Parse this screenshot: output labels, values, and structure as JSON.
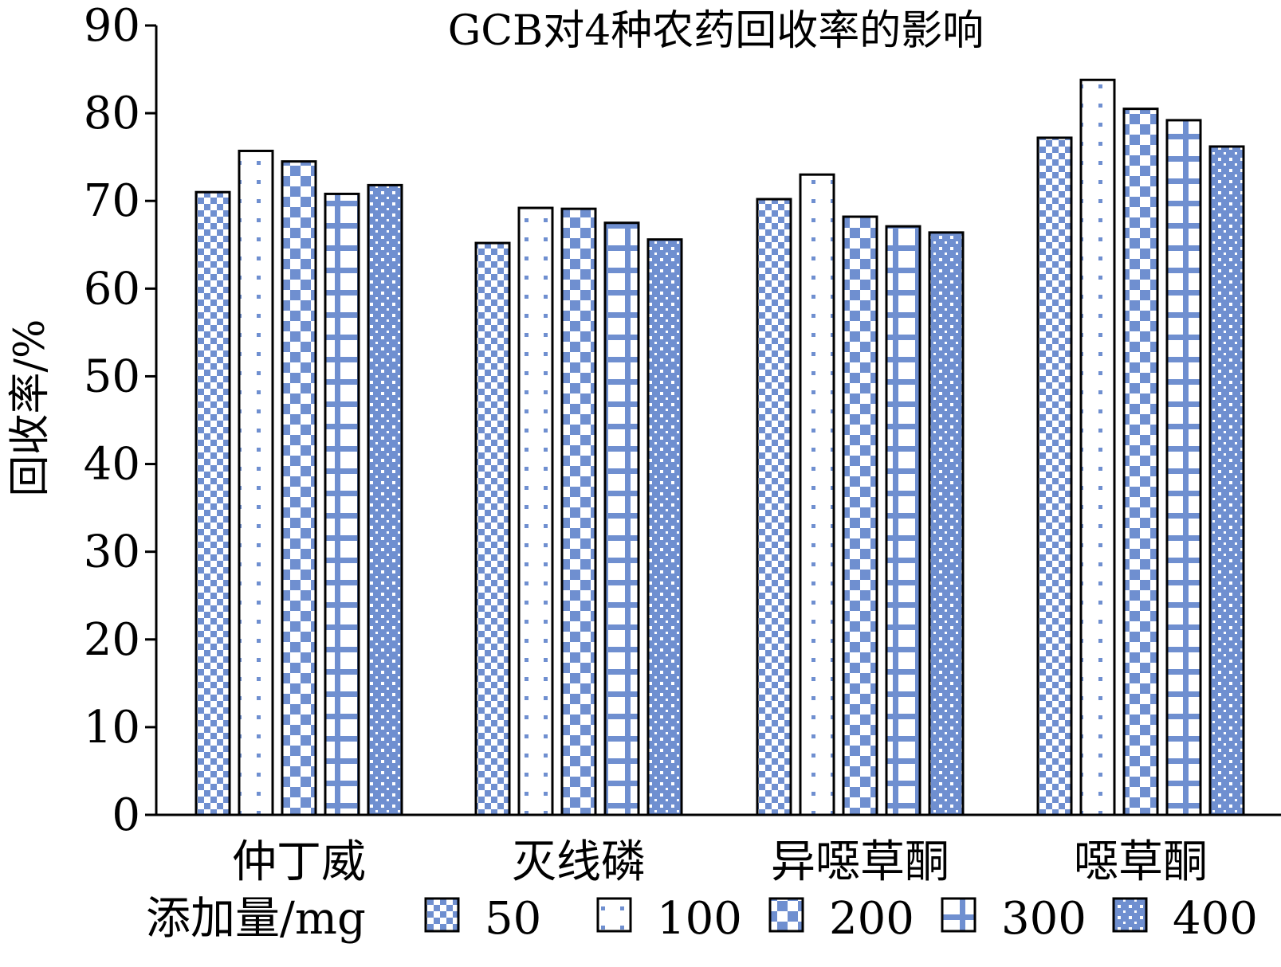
{
  "chart_data": {
    "type": "bar",
    "title": "GCB对4种农药回收率的影响",
    "xlabel": "",
    "ylabel": "回收率/%",
    "ylim": [
      0,
      90
    ],
    "yticks": [
      "0",
      "10",
      "20",
      "30",
      "40",
      "50",
      "60",
      "70",
      "80",
      "90"
    ],
    "categories": [
      "仲丁威",
      "灭线磷",
      "异噁草酮",
      "噁草酮"
    ],
    "legend_title": "添加量/mg",
    "legend_position": "bottom",
    "grid": false,
    "series": [
      {
        "name": "50",
        "pattern": "checker-fine",
        "values": [
          71.0,
          65.2,
          70.2,
          77.2
        ]
      },
      {
        "name": "100",
        "pattern": "sparse-dots",
        "values": [
          75.7,
          69.2,
          73.0,
          83.8
        ]
      },
      {
        "name": "200",
        "pattern": "checker-big",
        "values": [
          74.5,
          69.1,
          68.2,
          80.5
        ]
      },
      {
        "name": "300",
        "pattern": "grid-lines",
        "values": [
          70.8,
          67.5,
          67.1,
          79.2
        ]
      },
      {
        "name": "400",
        "pattern": "dense-plus",
        "values": [
          71.8,
          65.6,
          66.4,
          76.2
        ]
      }
    ],
    "colors": {
      "pattern_fill": "#6f8fd0",
      "outline": "#000000",
      "background": "#ffffff"
    }
  }
}
